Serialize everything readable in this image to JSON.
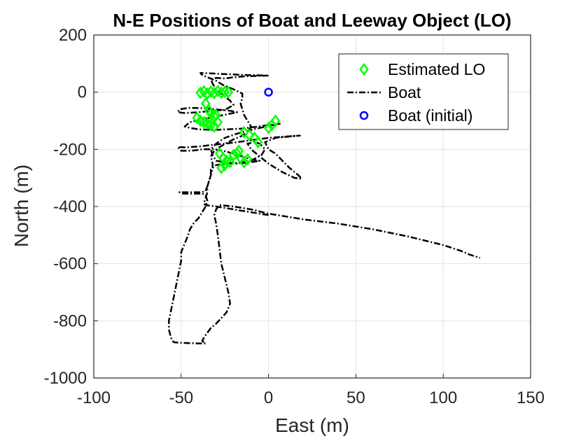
{
  "chart_data": {
    "type": "scatter",
    "title": "N-E Positions of Boat and Leeway Object (LO)",
    "xlabel": "East (m)",
    "ylabel": "North (m)",
    "xlim": [
      -100,
      150
    ],
    "ylim": [
      -1000,
      200
    ],
    "xticks": [
      "-100",
      "-50",
      "0",
      "50",
      "100",
      "150"
    ],
    "yticks": [
      "200",
      "0",
      "-200",
      "-400",
      "-600",
      "-800",
      "-1000"
    ],
    "grid": true,
    "legend_position": "top-right",
    "series": [
      {
        "name": "Estimated LO",
        "kind": "marker",
        "marker": "diamond",
        "color": "#00ff00",
        "points": [
          [
            -39,
            -2
          ],
          [
            -37,
            3
          ],
          [
            -35,
            -5
          ],
          [
            -33,
            2
          ],
          [
            -31,
            -3
          ],
          [
            -29,
            4
          ],
          [
            -27,
            -2
          ],
          [
            -25,
            1
          ],
          [
            -23,
            0
          ],
          [
            -36,
            -40
          ],
          [
            -34,
            -65
          ],
          [
            -33,
            -75
          ],
          [
            -31,
            -85
          ],
          [
            -30,
            -80
          ],
          [
            -41,
            -90
          ],
          [
            -39,
            -100
          ],
          [
            -37,
            -105
          ],
          [
            -35,
            -110
          ],
          [
            -33,
            -115
          ],
          [
            -31,
            -120
          ],
          [
            -29,
            -105
          ],
          [
            4,
            -100
          ],
          [
            2,
            -115
          ],
          [
            0,
            -125
          ],
          [
            -14,
            -140
          ],
          [
            -11,
            -150
          ],
          [
            -8,
            -160
          ],
          [
            -6,
            -175
          ],
          [
            -28,
            -215
          ],
          [
            -26,
            -230
          ],
          [
            -24,
            -240
          ],
          [
            -22,
            -245
          ],
          [
            -20,
            -220
          ],
          [
            -18,
            -215
          ],
          [
            -16,
            -230
          ],
          [
            -14,
            -245
          ],
          [
            -12,
            -235
          ],
          [
            -17,
            -205
          ],
          [
            -27,
            -265
          ],
          [
            -25,
            -255
          ]
        ]
      },
      {
        "name": "Boat",
        "kind": "line",
        "color": "#000000",
        "points": [
          [
            0,
            -430
          ],
          [
            -10,
            -420
          ],
          [
            -20,
            -410
          ],
          [
            -30,
            -400
          ],
          [
            -36,
            -395
          ],
          [
            -37,
            -390
          ],
          [
            -36,
            -370
          ],
          [
            -35,
            -350
          ],
          [
            -35,
            -330
          ],
          [
            -34,
            -310
          ],
          [
            -33,
            -290
          ],
          [
            -33,
            -270
          ],
          [
            -30,
            -255
          ],
          [
            -25,
            -250
          ],
          [
            -18,
            -248
          ],
          [
            -10,
            -240
          ],
          [
            -4,
            -220
          ],
          [
            -2,
            -200
          ],
          [
            -5,
            -180
          ],
          [
            -8,
            -175
          ],
          [
            -12,
            -180
          ],
          [
            -10,
            -200
          ],
          [
            -5,
            -225
          ],
          [
            0,
            -250
          ],
          [
            8,
            -280
          ],
          [
            15,
            -300
          ],
          [
            19,
            -303
          ],
          [
            17,
            -290
          ],
          [
            12,
            -265
          ],
          [
            8,
            -240
          ],
          [
            4,
            -215
          ],
          [
            0,
            -200
          ],
          [
            -2,
            -175
          ],
          [
            4,
            -160
          ],
          [
            12,
            -155
          ],
          [
            18,
            -152
          ],
          [
            10,
            -155
          ],
          [
            0,
            -160
          ],
          [
            -10,
            -168
          ],
          [
            -18,
            -175
          ],
          [
            -25,
            -180
          ],
          [
            -33,
            -185
          ],
          [
            -40,
            -190
          ],
          [
            -48,
            -193
          ],
          [
            -52,
            -192
          ],
          [
            -50,
            -205
          ],
          [
            -44,
            -205
          ],
          [
            -38,
            -200
          ],
          [
            -32,
            -200
          ],
          [
            -26,
            -205
          ],
          [
            -20,
            -215
          ],
          [
            -15,
            -225
          ],
          [
            -10,
            -235
          ],
          [
            -5,
            -240
          ],
          [
            -10,
            -245
          ],
          [
            -18,
            -250
          ],
          [
            -25,
            -245
          ],
          [
            -30,
            -240
          ],
          [
            -32,
            -220
          ],
          [
            -33,
            -200
          ],
          [
            -30,
            -180
          ],
          [
            -25,
            -160
          ],
          [
            -18,
            -145
          ],
          [
            -12,
            -135
          ],
          [
            -5,
            -125
          ],
          [
            3,
            -115
          ],
          [
            7,
            -110
          ],
          [
            0,
            -115
          ],
          [
            -8,
            -122
          ],
          [
            -16,
            -128
          ],
          [
            -24,
            -130
          ],
          [
            -32,
            -132
          ],
          [
            -40,
            -130
          ],
          [
            -45,
            -125
          ],
          [
            -48,
            -120
          ],
          [
            -45,
            -105
          ],
          [
            -38,
            -95
          ],
          [
            -30,
            -85
          ],
          [
            -24,
            -78
          ],
          [
            -18,
            -70
          ],
          [
            -22,
            -65
          ],
          [
            -30,
            -60
          ],
          [
            -38,
            -56
          ],
          [
            -46,
            -55
          ],
          [
            -51,
            -60
          ],
          [
            -52,
            -70
          ],
          [
            -48,
            -73
          ],
          [
            -40,
            -70
          ],
          [
            -32,
            -65
          ],
          [
            -25,
            -62
          ],
          [
            -20,
            -45
          ],
          [
            -22,
            -30
          ],
          [
            -26,
            -10
          ],
          [
            -30,
            10
          ],
          [
            -32,
            30
          ],
          [
            -33,
            45
          ],
          [
            -30,
            50
          ],
          [
            -25,
            48
          ],
          [
            -20,
            52
          ],
          [
            -15,
            55
          ],
          [
            -10,
            56
          ],
          [
            -5,
            57
          ],
          [
            0,
            58
          ],
          [
            -5,
            59
          ],
          [
            -12,
            60
          ],
          [
            -20,
            62
          ],
          [
            -28,
            64
          ],
          [
            -34,
            66
          ],
          [
            -39,
            67
          ],
          [
            -38,
            60
          ],
          [
            -34,
            50
          ],
          [
            -30,
            40
          ],
          [
            -26,
            25
          ],
          [
            -20,
            10
          ],
          [
            -15,
            -5
          ],
          [
            -15,
            -20
          ],
          [
            -16,
            -40
          ],
          [
            -15,
            -60
          ],
          [
            -14,
            -80
          ],
          [
            -12,
            -100
          ],
          [
            -10,
            -120
          ],
          [
            -12,
            -140
          ],
          [
            -16,
            -155
          ],
          [
            -20,
            -165
          ],
          [
            -24,
            -178
          ],
          [
            -28,
            -192
          ],
          [
            -31,
            -205
          ],
          [
            -33,
            -225
          ],
          [
            -32,
            -250
          ],
          [
            -32,
            -270
          ],
          [
            -33,
            -290
          ],
          [
            -34,
            -310
          ],
          [
            -35,
            -330
          ],
          [
            -36,
            -345
          ],
          [
            -38,
            -350
          ],
          [
            -45,
            -350
          ],
          [
            -51,
            -350
          ],
          [
            -49,
            -355
          ],
          [
            -43,
            -355
          ],
          [
            -38,
            -355
          ],
          [
            -36,
            -360
          ],
          [
            -35,
            -380
          ],
          [
            -36,
            -400
          ],
          [
            -38,
            -420
          ],
          [
            -40,
            -440
          ],
          [
            -43,
            -460
          ],
          [
            -45,
            -480
          ],
          [
            -46,
            -500
          ],
          [
            -48,
            -530
          ],
          [
            -50,
            -560
          ],
          [
            -50,
            -590
          ],
          [
            -51,
            -620
          ],
          [
            -52,
            -650
          ],
          [
            -53,
            -680
          ],
          [
            -54,
            -710
          ],
          [
            -55,
            -740
          ],
          [
            -56,
            -770
          ],
          [
            -57,
            -800
          ],
          [
            -57,
            -830
          ],
          [
            -56,
            -855
          ],
          [
            -55,
            -870
          ],
          [
            -54,
            -875
          ],
          [
            -50,
            -877
          ],
          [
            -45,
            -878
          ],
          [
            -40,
            -879
          ],
          [
            -36,
            -879
          ],
          [
            -38,
            -870
          ],
          [
            -36,
            -850
          ],
          [
            -33,
            -825
          ],
          [
            -30,
            -810
          ],
          [
            -27,
            -790
          ],
          [
            -24,
            -770
          ],
          [
            -22,
            -740
          ],
          [
            -23,
            -700
          ],
          [
            -25,
            -650
          ],
          [
            -27,
            -600
          ],
          [
            -28,
            -550
          ],
          [
            -29,
            -500
          ],
          [
            -30,
            -460
          ],
          [
            -31,
            -430
          ],
          [
            -30,
            -410
          ],
          [
            -28,
            -395
          ],
          [
            -20,
            -400
          ],
          [
            -10,
            -410
          ],
          [
            0,
            -425
          ],
          [
            20,
            -445
          ],
          [
            40,
            -460
          ],
          [
            60,
            -480
          ],
          [
            80,
            -505
          ],
          [
            100,
            -535
          ],
          [
            110,
            -555
          ],
          [
            115,
            -568
          ],
          [
            121,
            -580
          ]
        ]
      },
      {
        "name": "Boat (initial)",
        "kind": "marker",
        "marker": "circle",
        "color": "#0000ff",
        "points": [
          [
            0,
            0
          ]
        ]
      }
    ]
  }
}
